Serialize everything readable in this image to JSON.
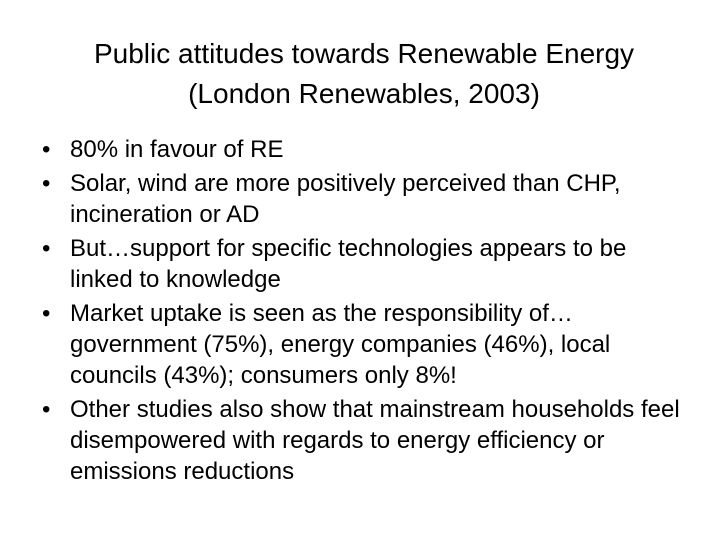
{
  "slide": {
    "title_line1": "Public attitudes towards Renewable Energy",
    "title_line2": "(London Renewables, 2003)",
    "bullet_symbol": "•",
    "bullets": [
      {
        "text": "80% in favour of RE"
      },
      {
        "text": "Solar, wind are more positively perceived than CHP, incineration or AD"
      },
      {
        "text": "But…support for specific technologies appears to be linked to knowledge"
      },
      {
        "text": "Market uptake is seen as the responsibility of…government (75%), energy companies (46%), local councils (43%); consumers only 8%!"
      },
      {
        "text": "Other studies also show that mainstream households feel disempowered with regards to energy efficiency or emissions reductions"
      }
    ]
  }
}
